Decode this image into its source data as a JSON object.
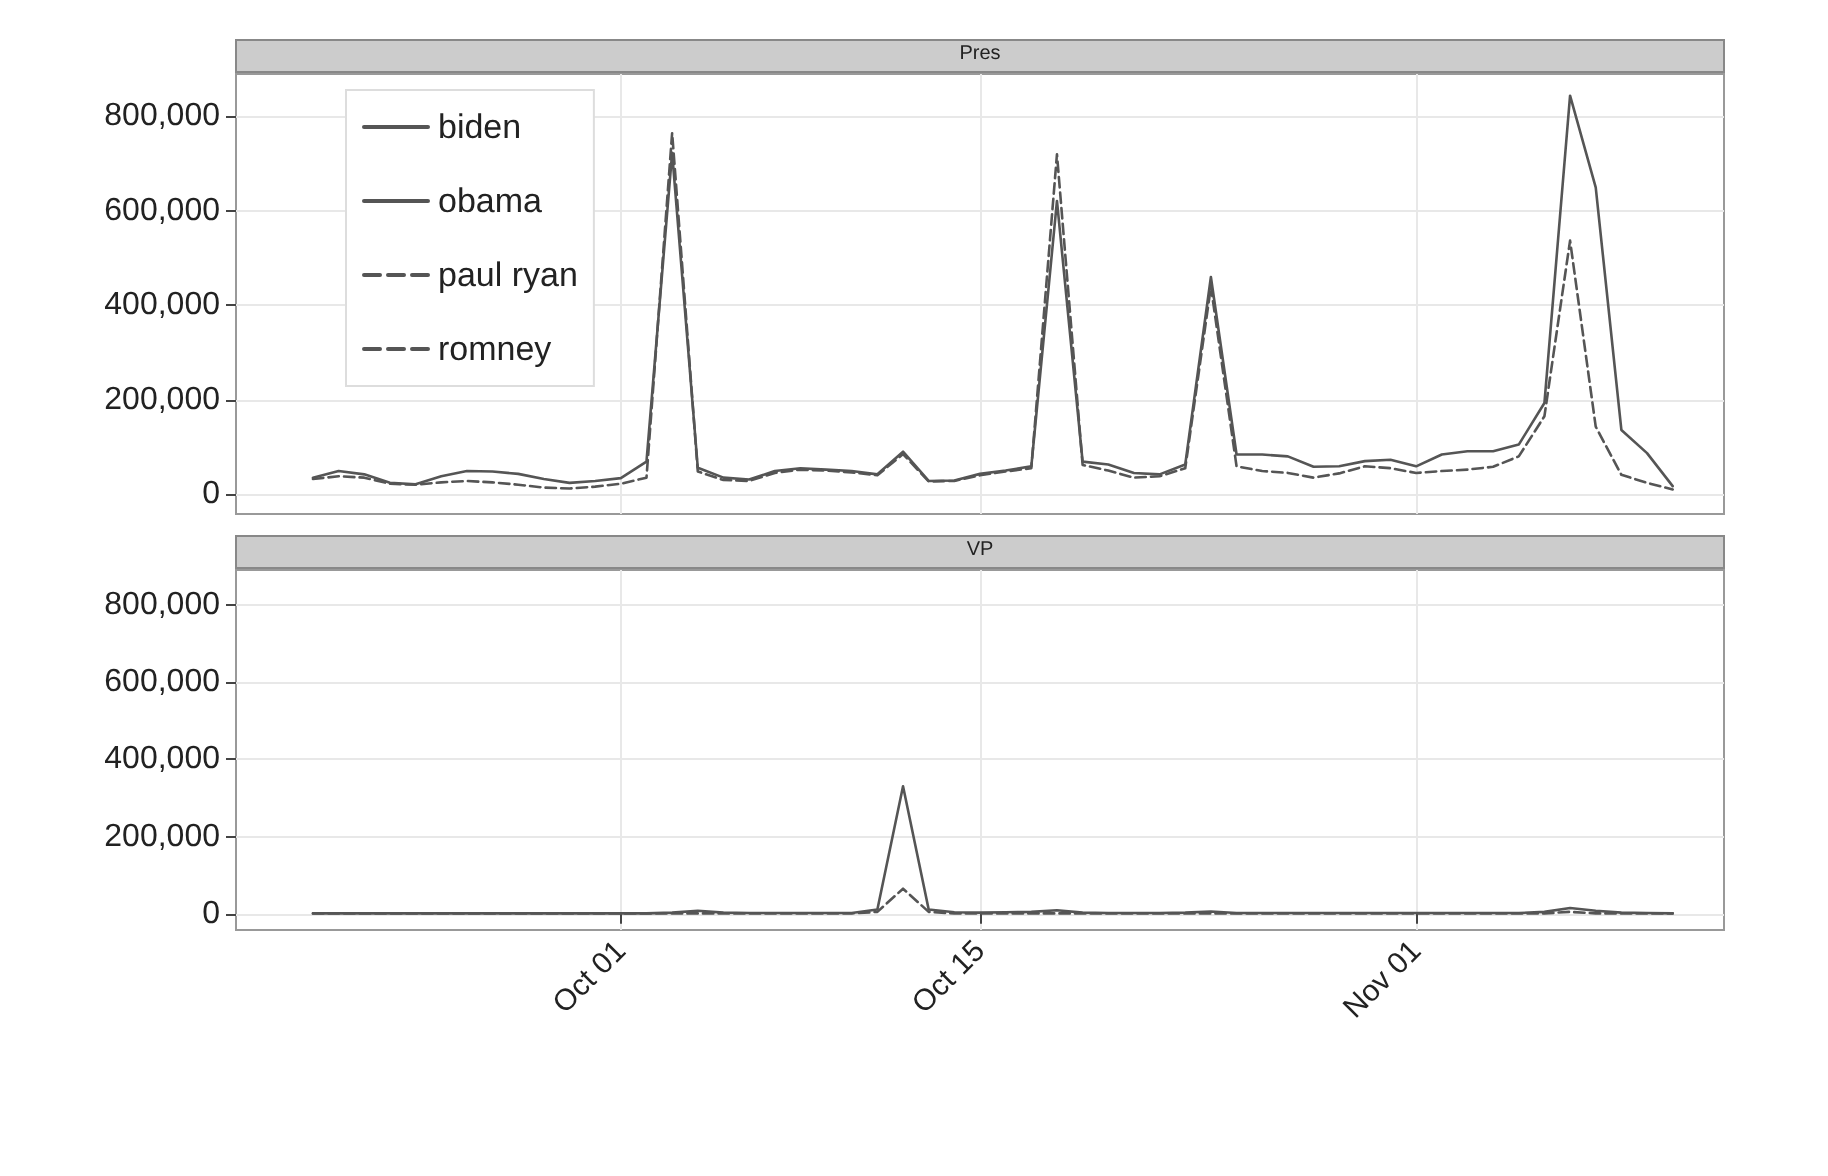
{
  "chart_data": [
    {
      "type": "line",
      "title": "Pres",
      "x": [
        "--09-19",
        "--09-20",
        "--09-21",
        "--09-22",
        "--09-23",
        "--09-24",
        "--09-25",
        "--09-26",
        "--09-27",
        "--09-28",
        "--09-29",
        "--09-30",
        "--10-01",
        "--10-02",
        "--10-03",
        "--10-04",
        "--10-05",
        "--10-06",
        "--10-07",
        "--10-08",
        "--10-09",
        "--10-10",
        "--10-11",
        "--10-12",
        "--10-13",
        "--10-14",
        "--10-15",
        "--10-16",
        "--10-17",
        "--10-18",
        "--10-19",
        "--10-20",
        "--10-21",
        "--10-22",
        "--10-23",
        "--10-24",
        "--10-25",
        "--10-26",
        "--10-27",
        "--10-28",
        "--10-29",
        "--10-30",
        "--10-31",
        "--11-01",
        "--11-02",
        "--11-03",
        "--11-04",
        "--11-05",
        "--11-06",
        "--11-07",
        "--11-08",
        "--11-09",
        "--11-10",
        "--11-11"
      ],
      "series": [
        {
          "name": "obama",
          "color": "#555555",
          "line_style": "solid",
          "values": [
            35000,
            49000,
            42000,
            24000,
            21000,
            38000,
            49000,
            48000,
            43000,
            32000,
            24000,
            28000,
            34000,
            69000,
            723000,
            56000,
            35000,
            31000,
            49000,
            55000,
            52000,
            49000,
            42000,
            90000,
            28000,
            29000,
            43000,
            50000,
            59000,
            621000,
            69000,
            63000,
            45000,
            42000,
            63000,
            460000,
            84000,
            84000,
            80000,
            58000,
            59000,
            70000,
            73000,
            59000,
            84000,
            91000,
            91000,
            105000,
            193000,
            844000,
            650000,
            136000,
            87000,
            17000
          ]
        },
        {
          "name": "romney",
          "color": "#555555",
          "line_style": "dashed",
          "values": [
            32000,
            38000,
            35000,
            22000,
            20000,
            25000,
            28000,
            25000,
            20000,
            14000,
            12000,
            16000,
            22000,
            35000,
            765000,
            48000,
            30000,
            28000,
            45000,
            52000,
            50000,
            46000,
            40000,
            85000,
            27000,
            28000,
            40000,
            48000,
            55000,
            720000,
            62000,
            50000,
            35000,
            38000,
            55000,
            440000,
            59000,
            49000,
            45000,
            35000,
            44000,
            59000,
            55000,
            45000,
            49000,
            52000,
            58000,
            80000,
            165000,
            537000,
            143000,
            41000,
            24000,
            10000
          ]
        }
      ],
      "xlim": [
        "--09-16",
        "--11-13"
      ],
      "xticks": [
        {
          "value": "--10-01",
          "label": null
        },
        {
          "value": "--10-15",
          "label": null
        },
        {
          "value": "--11-01",
          "label": null
        }
      ],
      "ylim": [
        -42000,
        890000
      ],
      "yticks": [
        0,
        {
          "value": 200000,
          "label": "200,000"
        },
        {
          "value": 400000,
          "label": "400,000"
        },
        {
          "value": 600000,
          "label": "600,000"
        },
        {
          "value": 800000,
          "label": "800,000"
        }
      ],
      "grid": true,
      "legend": "top left",
      "tick_labels": "y"
    },
    {
      "type": "line",
      "title": "VP",
      "x": [
        "--09-19",
        "--09-20",
        "--09-21",
        "--09-22",
        "--09-23",
        "--09-24",
        "--09-25",
        "--09-26",
        "--09-27",
        "--09-28",
        "--09-29",
        "--09-30",
        "--10-01",
        "--10-02",
        "--10-03",
        "--10-04",
        "--10-05",
        "--10-06",
        "--10-07",
        "--10-08",
        "--10-09",
        "--10-10",
        "--10-11",
        "--10-12",
        "--10-13",
        "--10-14",
        "--10-15",
        "--10-16",
        "--10-17",
        "--10-18",
        "--10-19",
        "--10-20",
        "--10-21",
        "--10-22",
        "--10-23",
        "--10-24",
        "--10-25",
        "--10-26",
        "--10-27",
        "--10-28",
        "--10-29",
        "--10-30",
        "--10-31",
        "--11-01",
        "--11-02",
        "--11-03",
        "--11-04",
        "--11-05",
        "--11-06",
        "--11-07",
        "--11-08",
        "--11-09",
        "--11-10",
        "--11-11"
      ],
      "series": [
        {
          "name": "biden",
          "color": "#555555",
          "line_style": "solid",
          "values": [
            1000,
            1000,
            1000,
            1000,
            1000,
            1000,
            1000,
            1000,
            1000,
            1000,
            1000,
            1000,
            1000,
            1000,
            3000,
            8000,
            3000,
            2000,
            2000,
            2000,
            2000,
            2000,
            11000,
            330000,
            11000,
            4000,
            3000,
            4000,
            5000,
            9000,
            3000,
            2000,
            2000,
            2000,
            3000,
            6000,
            2000,
            2000,
            2000,
            2000,
            2000,
            2000,
            2000,
            2000,
            2000,
            2000,
            2000,
            2000,
            5000,
            15000,
            8000,
            3000,
            2000,
            1000
          ]
        },
        {
          "name": "paul ryan",
          "color": "#555555",
          "line_style": "dashed",
          "values": [
            1000,
            1000,
            1000,
            1000,
            1000,
            1000,
            1000,
            1000,
            1000,
            1000,
            1000,
            1000,
            1000,
            1000,
            1000,
            1000,
            1000,
            1000,
            1000,
            1000,
            1000,
            1000,
            5000,
            65000,
            5000,
            1000,
            1000,
            1000,
            1000,
            1000,
            1000,
            1000,
            1000,
            1000,
            1000,
            1000,
            1000,
            1000,
            1000,
            1000,
            1000,
            1000,
            1000,
            1000,
            1000,
            1000,
            1000,
            1000,
            1000,
            5000,
            1000,
            1000,
            1000,
            1000
          ]
        }
      ],
      "xlim": [
        "--09-16",
        "--11-13"
      ],
      "xticks": [
        {
          "value": "--10-01",
          "label": "Oct 01"
        },
        {
          "value": "--10-15",
          "label": "Oct 15"
        },
        {
          "value": "--11-01",
          "label": "Nov 01"
        }
      ],
      "ylim": [
        -42000,
        890000
      ],
      "yticks": [
        0,
        {
          "value": 200000,
          "label": "200,000"
        },
        {
          "value": 400000,
          "label": "400,000"
        },
        {
          "value": 600000,
          "label": "600,000"
        },
        {
          "value": 800000,
          "label": "800,000"
        }
      ],
      "grid": true
    }
  ]
}
